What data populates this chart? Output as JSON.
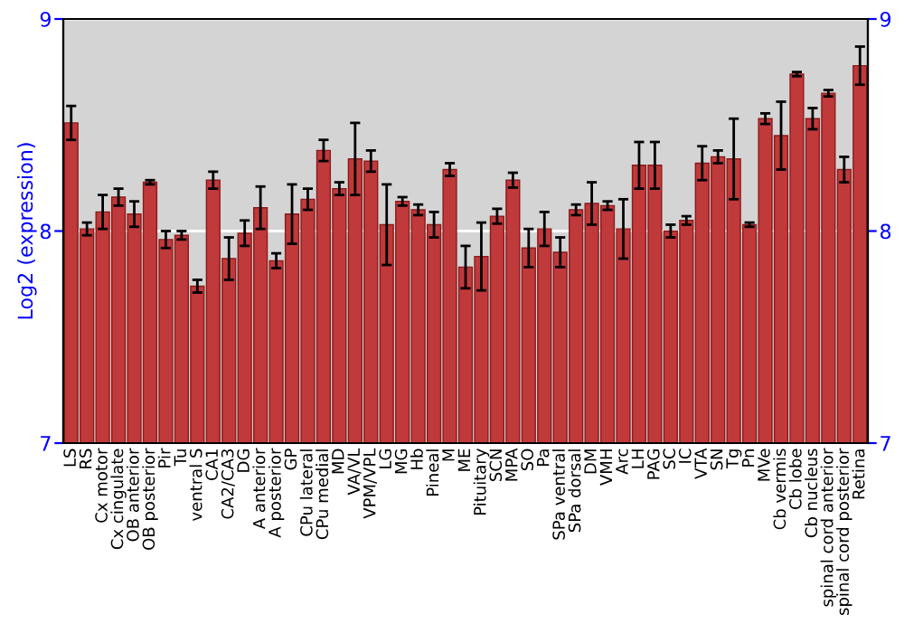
{
  "chart_data": {
    "type": "bar",
    "ylabel": "Log2 (expression)",
    "categories": [
      "LS",
      "RS",
      "Cx motor",
      "Cx cingulate",
      "OB anterior",
      "OB posterior",
      "Pir",
      "Tu",
      "ventral S",
      "CA1",
      "CA2/CA3",
      "DG",
      "A anterior",
      "A posterior",
      "GP",
      "CPu lateral",
      "CPu medial",
      "MD",
      "VA/VL",
      "VPM/VPL",
      "LG",
      "MG",
      "Hb",
      "Pineal",
      "M",
      "ME",
      "Pituitary",
      "SCN",
      "MPA",
      "SO",
      "Pa",
      "SPa ventral",
      "SPa dorsal",
      "DM",
      "VMH",
      "Arc",
      "LH",
      "PAG",
      "SC",
      "IC",
      "VTA",
      "SN",
      "Tg",
      "Pn",
      "MVe",
      "Cb vermis",
      "Cb lobe",
      "Cb nucleus",
      "spinal cord anterior",
      "spinal cord posterior",
      "Retina"
    ],
    "values": [
      8.51,
      8.01,
      8.09,
      8.16,
      8.08,
      8.23,
      7.96,
      7.98,
      7.74,
      8.24,
      7.87,
      7.99,
      8.11,
      7.86,
      8.08,
      8.15,
      8.38,
      8.2,
      8.34,
      8.33,
      8.03,
      8.14,
      8.1,
      8.03,
      8.29,
      7.83,
      7.88,
      8.07,
      8.24,
      7.92,
      8.01,
      7.9,
      8.1,
      8.13,
      8.12,
      8.01,
      8.31,
      8.31,
      8.0,
      8.05,
      8.32,
      8.35,
      8.34,
      8.03,
      8.53,
      8.45,
      8.74,
      8.53,
      8.65,
      8.29,
      8.78
    ],
    "errors": [
      0.08,
      0.03,
      0.08,
      0.04,
      0.06,
      0.01,
      0.04,
      0.02,
      0.03,
      0.04,
      0.1,
      0.06,
      0.1,
      0.035,
      0.14,
      0.05,
      0.05,
      0.03,
      0.17,
      0.05,
      0.19,
      0.02,
      0.025,
      0.06,
      0.03,
      0.1,
      0.16,
      0.035,
      0.035,
      0.09,
      0.08,
      0.07,
      0.025,
      0.1,
      0.02,
      0.14,
      0.11,
      0.11,
      0.03,
      0.02,
      0.08,
      0.03,
      0.19,
      0.01,
      0.025,
      0.16,
      0.01,
      0.05,
      0.015,
      0.06,
      0.09
    ],
    "color": "#c0393b",
    "ylim": [
      7,
      9
    ],
    "yticks": [
      7,
      8,
      9
    ],
    "y2lim": [
      7,
      9
    ],
    "y2ticks": [
      7,
      8,
      9
    ],
    "grid": "y"
  }
}
